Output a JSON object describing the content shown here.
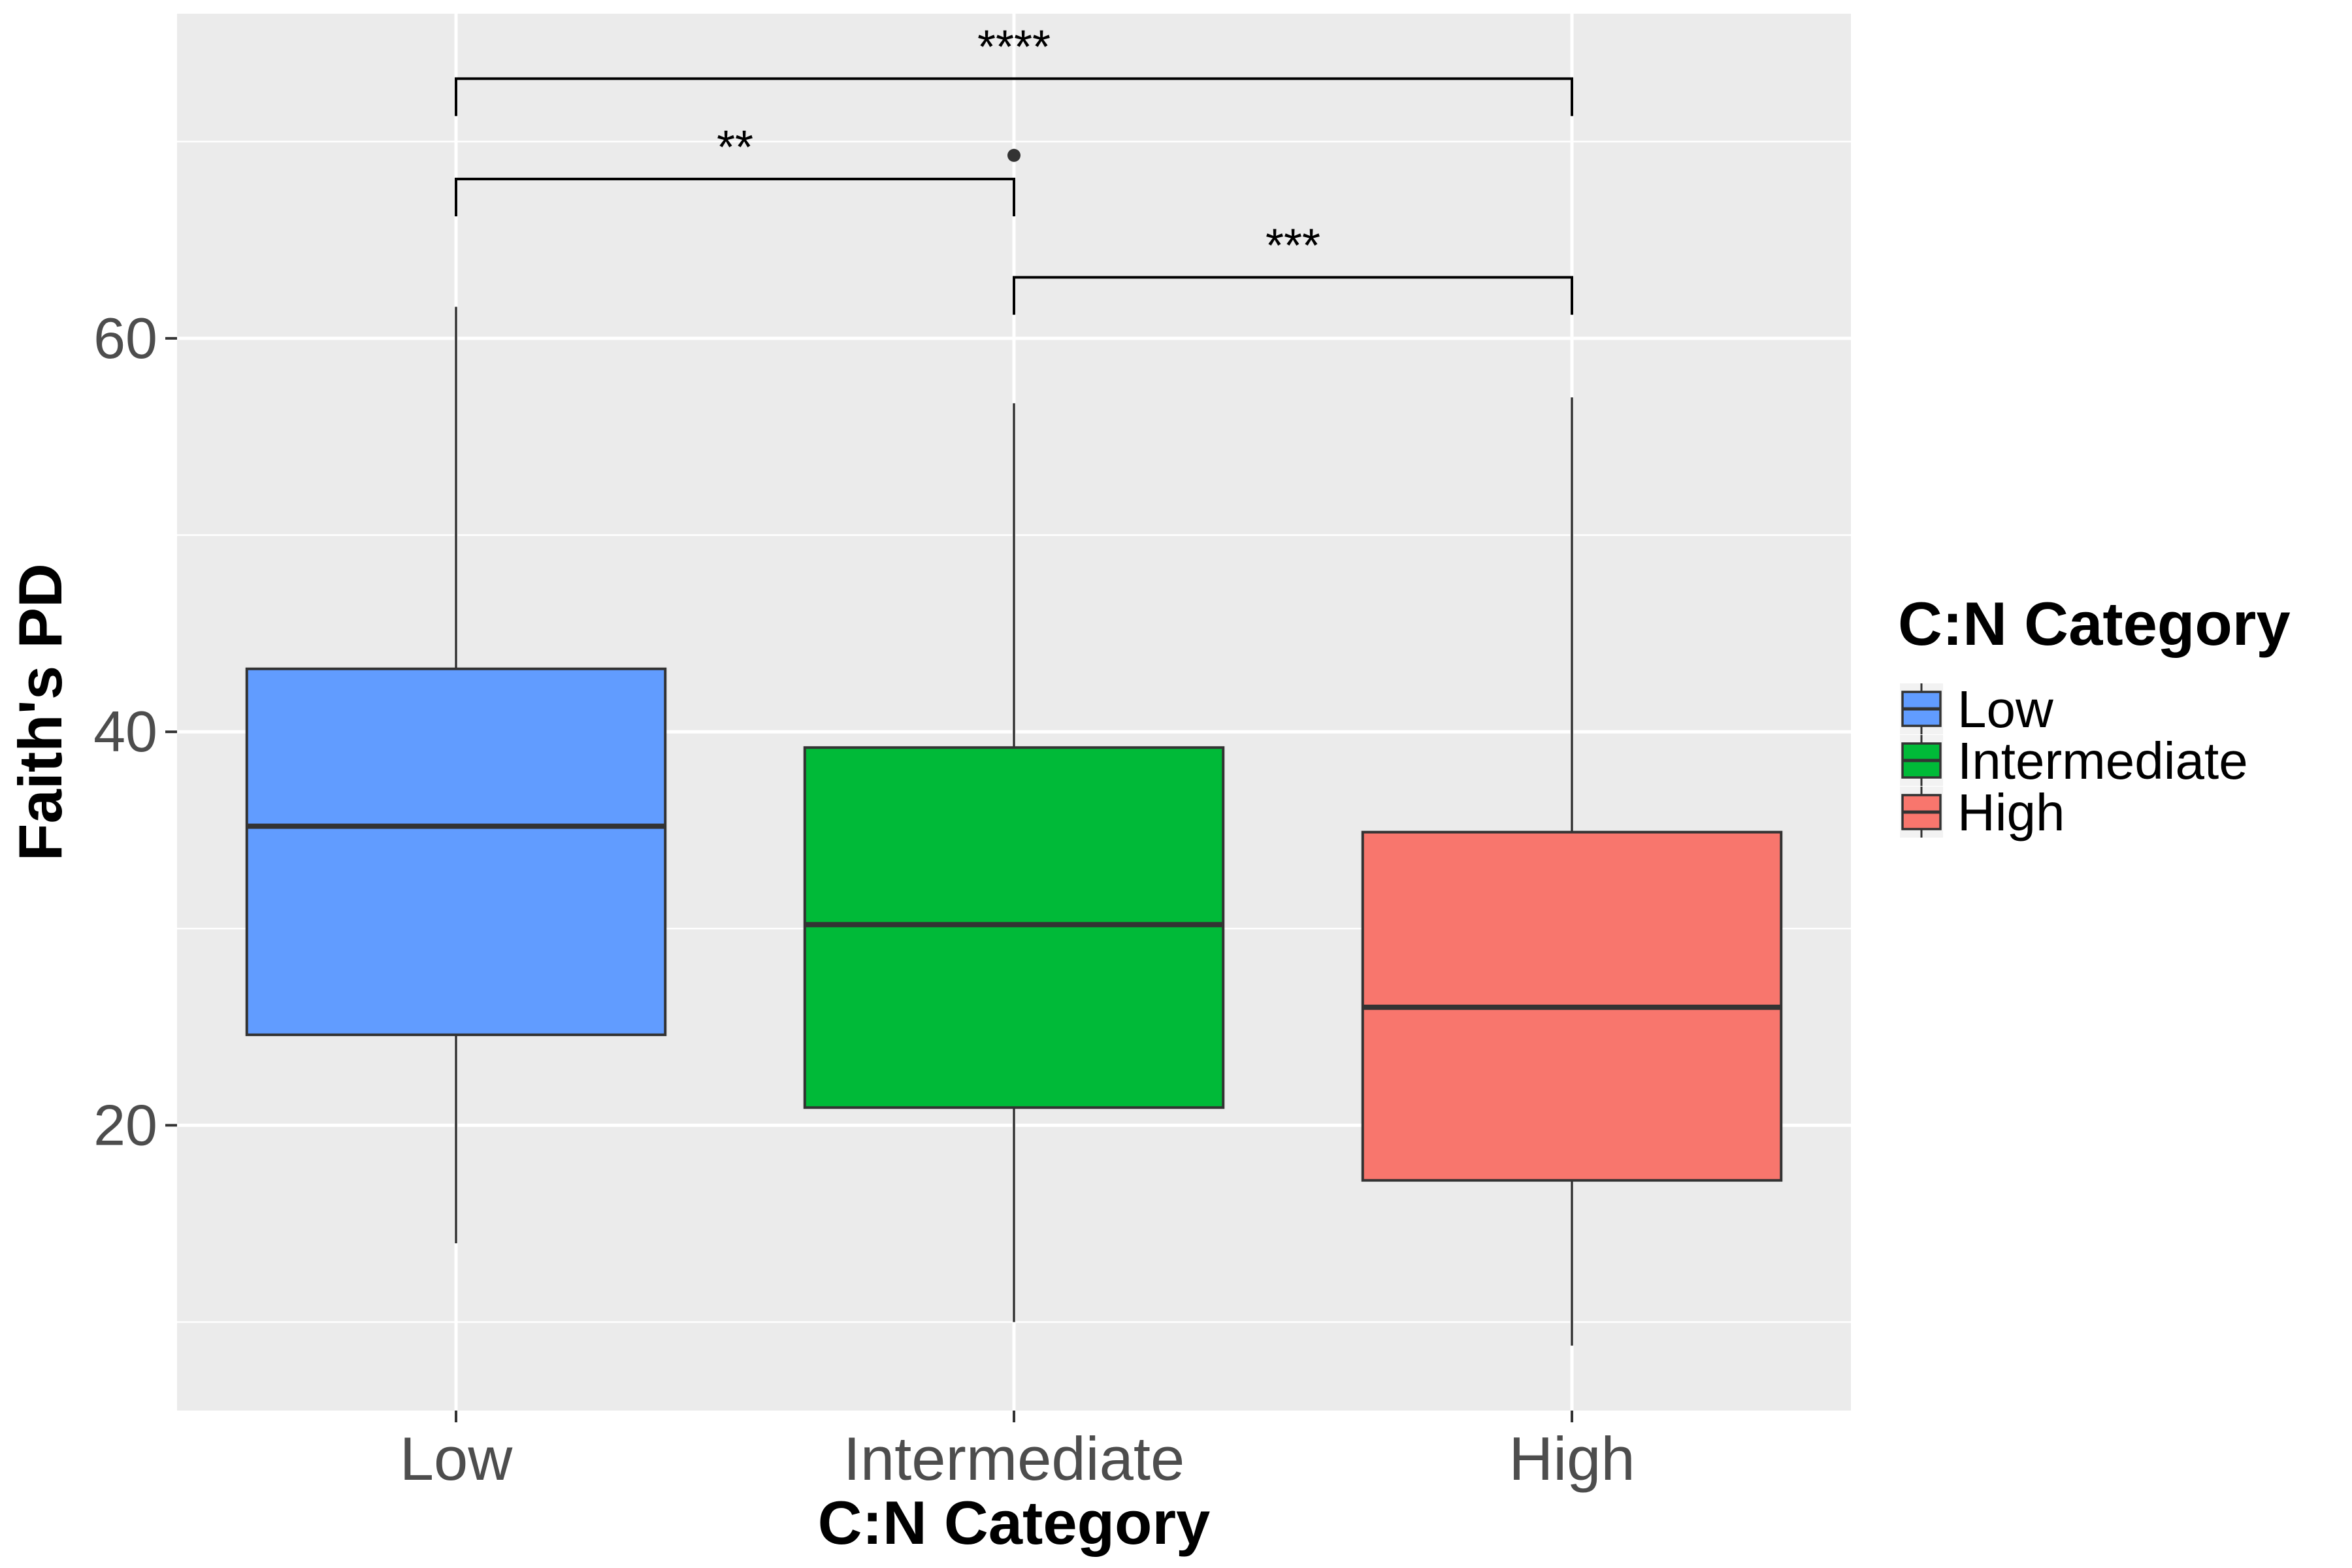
{
  "chart_data": {
    "type": "boxplot",
    "xlabel": "C:N Category",
    "ylabel": "Faith's PD",
    "categories": [
      "Low",
      "Intermediate",
      "High"
    ],
    "ylim": [
      5.5,
      76.5
    ],
    "y_ticks": [
      20,
      40,
      60
    ],
    "y_minor_ticks": [
      10,
      30,
      50,
      70
    ],
    "grid": true,
    "colors": {
      "Low": "#619CFF",
      "Intermediate": "#00BA38",
      "High": "#F8766D",
      "panel_background": "#EBEBEB",
      "gridline": "#FFFFFF",
      "box_outline": "#333333"
    },
    "boxes": [
      {
        "category": "Low",
        "whisker_low": 14.0,
        "q1": 24.6,
        "median": 35.2,
        "q3": 43.2,
        "whisker_high": 61.6,
        "outliers": []
      },
      {
        "category": "Intermediate",
        "whisker_low": 10.0,
        "q1": 20.9,
        "median": 30.2,
        "q3": 39.2,
        "whisker_high": 56.7,
        "outliers": [
          69.3
        ]
      },
      {
        "category": "High",
        "whisker_low": 8.8,
        "q1": 17.2,
        "median": 26.0,
        "q3": 34.9,
        "whisker_high": 57.0,
        "outliers": []
      }
    ],
    "significance": [
      {
        "from": "Low",
        "to": "Intermediate",
        "y": 68.1,
        "tip_y": 66.2,
        "label": "**"
      },
      {
        "from": "Intermediate",
        "to": "High",
        "y": 63.1,
        "tip_y": 61.2,
        "label": "***"
      },
      {
        "from": "Low",
        "to": "High",
        "y": 73.2,
        "tip_y": 71.3,
        "label": "****"
      }
    ],
    "legend": {
      "title": "C:N Category",
      "position": "right",
      "entries": [
        "Low",
        "Intermediate",
        "High"
      ]
    }
  }
}
